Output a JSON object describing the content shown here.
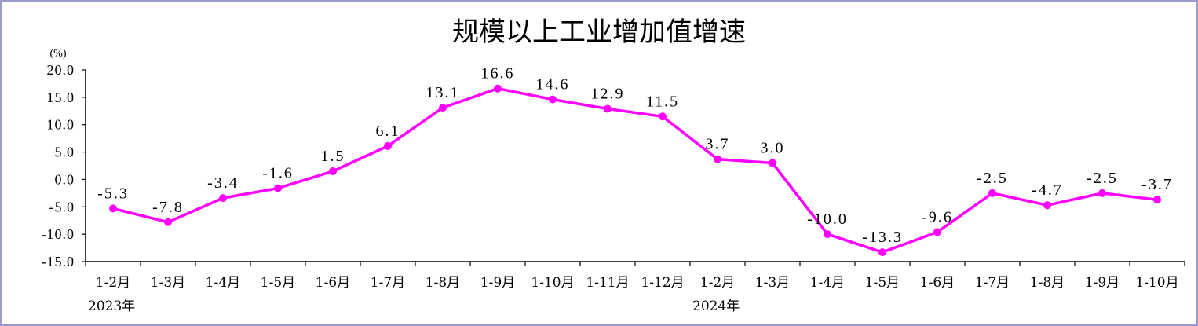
{
  "chart_data": {
    "type": "line",
    "title": "规模以上工业增加值增速",
    "unit_label": "(%)",
    "categories": [
      "1-2月",
      "1-3月",
      "1-4月",
      "1-5月",
      "1-6月",
      "1-7月",
      "1-8月",
      "1-9月",
      "1-10月",
      "1-11月",
      "1-12月",
      "1-2月",
      "1-3月",
      "1-4月",
      "1-5月",
      "1-6月",
      "1-7月",
      "1-8月",
      "1-9月",
      "1-10月"
    ],
    "year_labels": [
      {
        "text": "2023年",
        "category_index": 0
      },
      {
        "text": "2024年",
        "category_index": 11
      }
    ],
    "series": [
      {
        "values": [
          -5.3,
          -7.8,
          -3.4,
          -1.6,
          1.5,
          6.1,
          13.1,
          16.6,
          14.6,
          12.9,
          11.5,
          3.7,
          3.0,
          -10.0,
          -13.3,
          -9.6,
          -2.5,
          -4.7,
          -2.5,
          -3.7
        ]
      }
    ],
    "data_labels": [
      "-5.3",
      "-7.8",
      "-3.4",
      "-1.6",
      "1.5",
      "6.1",
      "13.1",
      "16.6",
      "14.6",
      "12.9",
      "11.5",
      "3.7",
      "3.0",
      "-10.0",
      "-13.3",
      "-9.6",
      "-2.5",
      "-4.7",
      "-2.5",
      "-3.7"
    ],
    "yticks": [
      "20.0",
      "15.0",
      "10.0",
      "5.0",
      "0.0",
      "-5.0",
      "-10.0",
      "-15.0"
    ],
    "ylim": [
      -15,
      20
    ],
    "grid": false,
    "legend": "none",
    "line_color": "#ff00ff"
  }
}
